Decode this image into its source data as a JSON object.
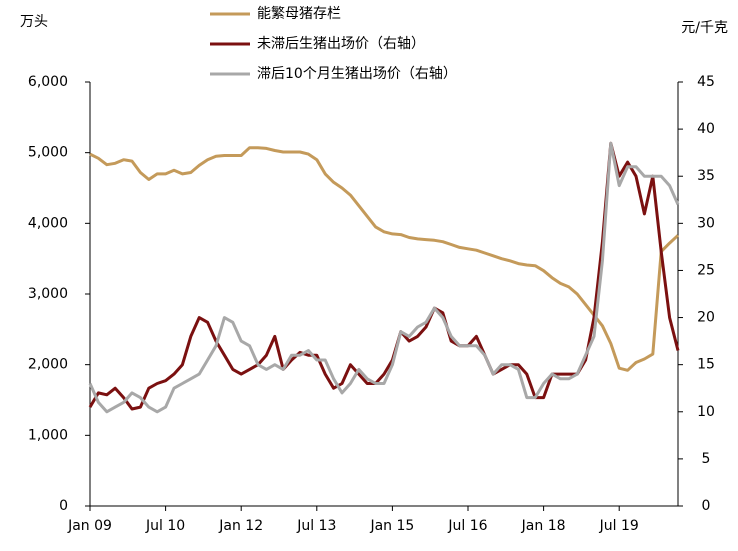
{
  "chart_data": {
    "type": "line",
    "ylabel": "万头",
    "y2label": "元/千克",
    "categories": [
      "Jan 09",
      null,
      null,
      null,
      null,
      null,
      null,
      null,
      null,
      "Jul 10",
      null,
      null,
      null,
      null,
      null,
      null,
      null,
      null,
      "Jan 12",
      null,
      null,
      null,
      null,
      null,
      null,
      null,
      null,
      "Jul 13",
      null,
      null,
      null,
      null,
      null,
      null,
      null,
      null,
      "Jan 15",
      null,
      null,
      null,
      null,
      null,
      null,
      null,
      null,
      "Jul 16",
      null,
      null,
      null,
      null,
      null,
      null,
      null,
      null,
      "Jan 18",
      null,
      null,
      null,
      null,
      null,
      null,
      null,
      null,
      "Jul 19",
      null,
      null,
      null,
      null,
      null,
      null,
      null
    ],
    "series": [
      {
        "name": "能繁母猪存栏",
        "color": "#c49a5a",
        "axis": "y",
        "values": [
          4980,
          4920,
          4830,
          4850,
          4900,
          4880,
          4720,
          4620,
          4700,
          4700,
          4750,
          4700,
          4720,
          4820,
          4900,
          4950,
          4960,
          4960,
          4960,
          5070,
          5070,
          5060,
          5030,
          5010,
          5010,
          5010,
          4980,
          4900,
          4700,
          4580,
          4500,
          4400,
          4250,
          4100,
          3950,
          3880,
          3850,
          3840,
          3800,
          3780,
          3770,
          3760,
          3740,
          3700,
          3660,
          3640,
          3620,
          3580,
          3540,
          3500,
          3470,
          3430,
          3410,
          3400,
          3330,
          3230,
          3150,
          3100,
          3000,
          2850,
          2700,
          2550,
          2300,
          1950,
          1920,
          2030,
          2080,
          2150,
          3600,
          3720,
          3830
        ]
      },
      {
        "name": "未滞后生猪出场价（右轴）",
        "color": "#7b1010",
        "axis": "y2",
        "values": [
          10.5,
          12,
          11.8,
          12.5,
          11.5,
          10.3,
          10.5,
          12.5,
          13,
          13.3,
          14,
          15,
          18,
          20,
          19.5,
          17.5,
          16,
          14.5,
          14,
          14.5,
          15,
          16,
          18,
          14.5,
          15.5,
          16.3,
          16,
          16,
          14,
          12.5,
          13,
          15,
          14,
          13,
          13,
          14,
          15.5,
          18.5,
          17.5,
          18,
          19,
          21,
          20.5,
          17.5,
          17,
          17,
          18,
          16,
          14,
          14.5,
          15,
          15,
          14,
          11.5,
          11.5,
          14,
          14,
          14,
          14,
          15.5,
          20,
          28,
          38.5,
          35,
          36.5,
          35,
          31,
          35,
          27,
          20,
          16.5
        ]
      },
      {
        "name": "滞后10个月生猪出场价（右轴）",
        "color": "#a8a8a8",
        "axis": "y2",
        "values": [
          13,
          11,
          10,
          10.5,
          11,
          12,
          11.5,
          10.5,
          10,
          10.5,
          12.5,
          13,
          13.5,
          14,
          15.5,
          17,
          20,
          19.5,
          17.5,
          17,
          15,
          14.5,
          15,
          14.5,
          16,
          16,
          16.5,
          15.5,
          15.5,
          13.5,
          12,
          13,
          14.5,
          13.5,
          13,
          13,
          15,
          18.5,
          18,
          19,
          19.5,
          21,
          20,
          18,
          17,
          17,
          17,
          16,
          14,
          15,
          15,
          14.5,
          11.5,
          11.5,
          13,
          14,
          13.5,
          13.5,
          14,
          16,
          18,
          26,
          38.5,
          34,
          36,
          36,
          35,
          35,
          35,
          34,
          32
        ]
      }
    ],
    "ylim": [
      0,
      6000
    ],
    "yticks": [
      0,
      {
        "value": 1000,
        "label": "1,000"
      },
      {
        "value": 2000,
        "label": "2,000"
      },
      {
        "value": 3000,
        "label": "3,000"
      },
      {
        "value": 4000,
        "label": "4,000"
      },
      {
        "value": 5000,
        "label": "5,000"
      },
      {
        "value": 6000,
        "label": "6,000"
      }
    ],
    "y2lim": [
      0,
      45
    ],
    "y2ticks": [
      0,
      5,
      10,
      15,
      20,
      25,
      30,
      35,
      40,
      45
    ]
  }
}
